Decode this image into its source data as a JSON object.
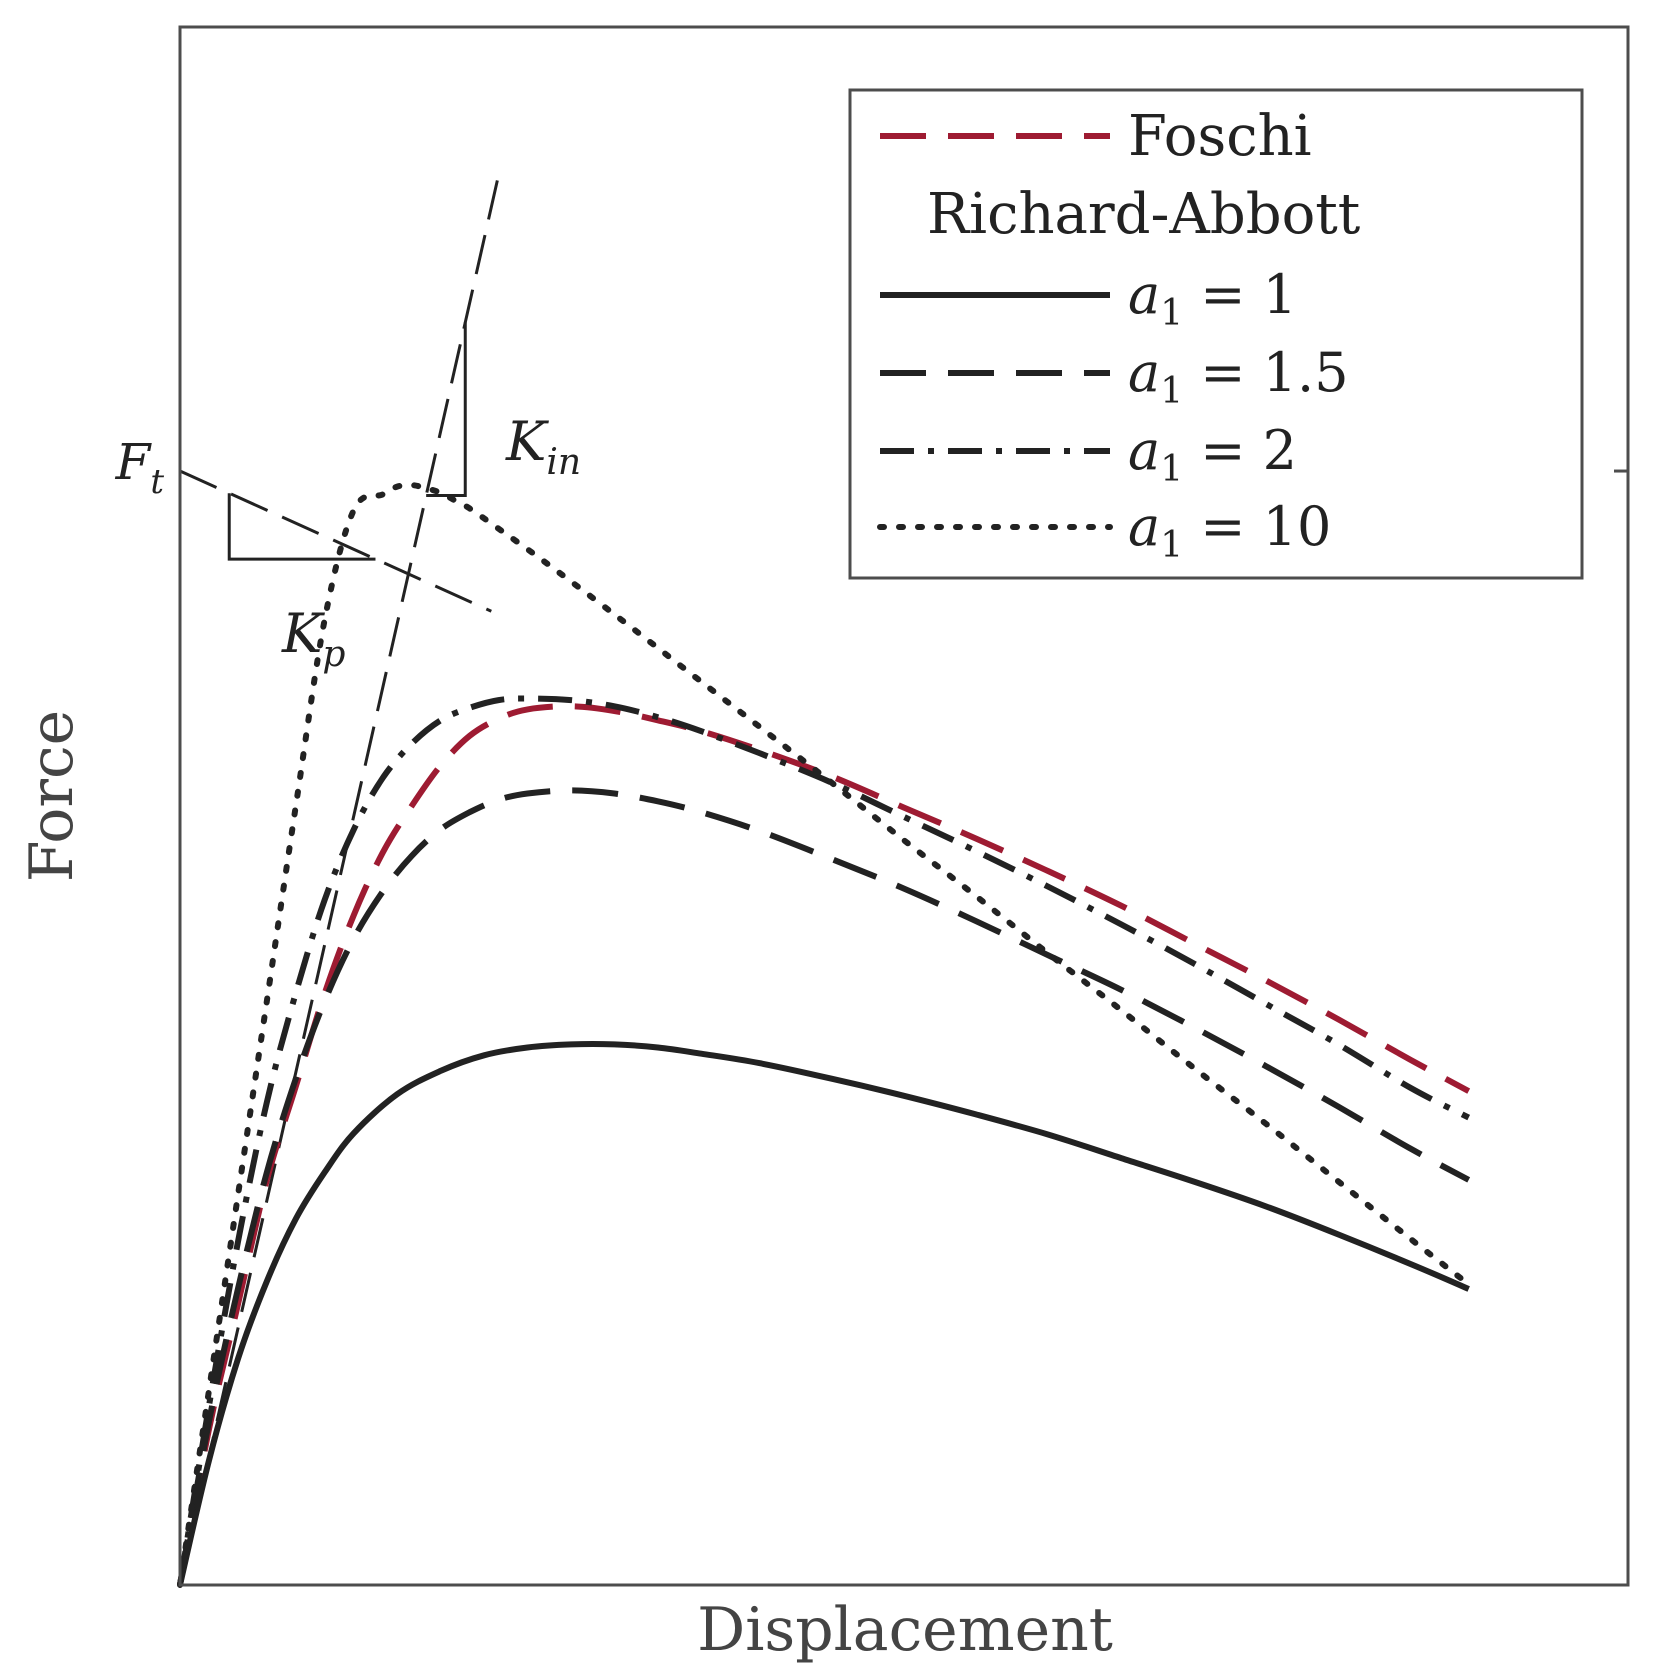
{
  "chart_data": {
    "type": "line",
    "title": "",
    "xlabel": "Displacement",
    "ylabel": "Force",
    "xlim": [
      0,
      1
    ],
    "ylim": [
      0,
      1
    ],
    "x_ticks": [],
    "y_ticks": [],
    "grid": false,
    "legend_position": "top-right",
    "y_marker": {
      "label_main": "F",
      "label_sub": "t",
      "value": 0.715
    },
    "annotations": {
      "kin": {
        "main": "K",
        "sub": "in"
      },
      "kp": {
        "main": "K",
        "sub": "p"
      }
    },
    "legend": {
      "heading": "Richard-Abbott",
      "entries": [
        {
          "series": "Foschi",
          "text": "Foschi"
        },
        {
          "series": "a1_1",
          "main": "a",
          "sub": "1",
          "rest": " = 1"
        },
        {
          "series": "a1_1_5",
          "main": "a",
          "sub": "1",
          "rest": " = 1.5"
        },
        {
          "series": "a1_2",
          "main": "a",
          "sub": "1",
          "rest": " = 2"
        },
        {
          "series": "a1_10",
          "main": "a",
          "sub": "1",
          "rest": " = 10"
        }
      ]
    },
    "series": [
      {
        "name": "Foschi",
        "color": "#9e1b32",
        "style": "dashed",
        "x": [
          0,
          0.02,
          0.04,
          0.06,
          0.08,
          0.1,
          0.12,
          0.14,
          0.16,
          0.18,
          0.2,
          0.22,
          0.24,
          0.27,
          0.3,
          0.33,
          0.36,
          0.4,
          0.45,
          0.5,
          0.55,
          0.6,
          0.65,
          0.7,
          0.75,
          0.8,
          0.85,
          0.89
        ],
        "y": [
          0,
          0.1,
          0.18,
          0.26,
          0.32,
          0.38,
          0.43,
          0.47,
          0.5,
          0.526,
          0.545,
          0.556,
          0.562,
          0.564,
          0.561,
          0.555,
          0.548,
          0.536,
          0.519,
          0.499,
          0.479,
          0.458,
          0.436,
          0.412,
          0.388,
          0.363,
          0.337,
          0.317
        ]
      },
      {
        "name": "a1 = 1",
        "color": "#222222",
        "style": "solid",
        "x": [
          0,
          0.02,
          0.04,
          0.06,
          0.08,
          0.1,
          0.12,
          0.15,
          0.18,
          0.21,
          0.24,
          0.27,
          0.3,
          0.33,
          0.36,
          0.4,
          0.45,
          0.5,
          0.55,
          0.6,
          0.65,
          0.7,
          0.75,
          0.8,
          0.85,
          0.89
        ],
        "y": [
          0,
          0.08,
          0.145,
          0.195,
          0.235,
          0.265,
          0.29,
          0.315,
          0.33,
          0.34,
          0.345,
          0.347,
          0.347,
          0.345,
          0.341,
          0.335,
          0.325,
          0.314,
          0.302,
          0.289,
          0.274,
          0.259,
          0.243,
          0.225,
          0.206,
          0.19
        ]
      },
      {
        "name": "a1 = 1.5",
        "color": "#222222",
        "style": "dashed",
        "x": [
          0,
          0.02,
          0.04,
          0.06,
          0.08,
          0.1,
          0.12,
          0.14,
          0.16,
          0.18,
          0.2,
          0.22,
          0.24,
          0.27,
          0.3,
          0.33,
          0.36,
          0.4,
          0.45,
          0.5,
          0.55,
          0.6,
          0.65,
          0.7,
          0.75,
          0.8,
          0.85,
          0.89
        ],
        "y": [
          0,
          0.105,
          0.19,
          0.265,
          0.325,
          0.375,
          0.415,
          0.445,
          0.468,
          0.485,
          0.496,
          0.504,
          0.508,
          0.51,
          0.508,
          0.503,
          0.496,
          0.484,
          0.466,
          0.447,
          0.426,
          0.404,
          0.382,
          0.358,
          0.333,
          0.307,
          0.28,
          0.26
        ]
      },
      {
        "name": "a1 = 2",
        "color": "#222222",
        "style": "dashdot",
        "x": [
          0,
          0.02,
          0.04,
          0.06,
          0.08,
          0.1,
          0.12,
          0.14,
          0.16,
          0.18,
          0.2,
          0.22,
          0.24,
          0.27,
          0.3,
          0.33,
          0.36,
          0.4,
          0.45,
          0.5,
          0.55,
          0.6,
          0.65,
          0.7,
          0.75,
          0.8,
          0.85,
          0.89
        ],
        "y": [
          0,
          0.115,
          0.22,
          0.31,
          0.38,
          0.44,
          0.485,
          0.518,
          0.54,
          0.555,
          0.563,
          0.568,
          0.569,
          0.568,
          0.564,
          0.557,
          0.548,
          0.534,
          0.515,
          0.493,
          0.471,
          0.448,
          0.424,
          0.399,
          0.373,
          0.347,
          0.319,
          0.3
        ]
      },
      {
        "name": "a1 = 10",
        "color": "#222222",
        "style": "dotted",
        "x": [
          0,
          0.02,
          0.04,
          0.06,
          0.08,
          0.1,
          0.12,
          0.14,
          0.15,
          0.16,
          0.17,
          0.18,
          0.19,
          0.2,
          0.22,
          0.25,
          0.3,
          0.35,
          0.4,
          0.45,
          0.5,
          0.55,
          0.6,
          0.65,
          0.7,
          0.75,
          0.8,
          0.85,
          0.89
        ],
        "y": [
          0,
          0.125,
          0.25,
          0.375,
          0.5,
          0.62,
          0.69,
          0.7,
          0.705,
          0.706,
          0.704,
          0.701,
          0.696,
          0.691,
          0.678,
          0.658,
          0.623,
          0.587,
          0.551,
          0.515,
          0.478,
          0.442,
          0.405,
          0.369,
          0.332,
          0.296,
          0.259,
          0.222,
          0.193
        ]
      }
    ],
    "construction_lines": {
      "kin": {
        "x": [
          0,
          0.22
        ],
        "y": [
          0,
          0.905
        ]
      },
      "kp": {
        "x": [
          0,
          0.215
        ],
        "y": [
          0.715,
          0.625
        ]
      }
    }
  }
}
